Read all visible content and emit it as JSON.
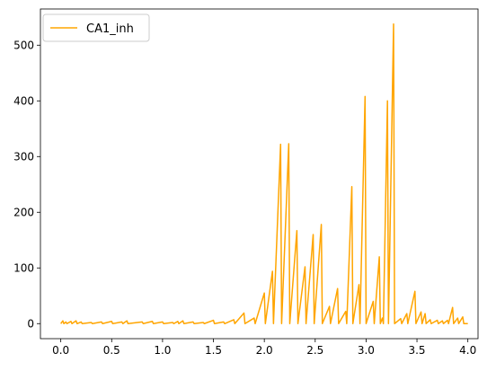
{
  "chart_data": {
    "type": "line",
    "title": "",
    "xlabel": "",
    "ylabel": "",
    "xlim": [
      -0.2,
      4.1
    ],
    "ylim": [
      -27,
      565
    ],
    "xticks": [
      0.0,
      0.5,
      1.0,
      1.5,
      2.0,
      2.5,
      3.0,
      3.5,
      4.0
    ],
    "xtick_labels": [
      "0.0",
      "0.5",
      "1.0",
      "1.5",
      "2.0",
      "2.5",
      "3.0",
      "3.5",
      "4.0"
    ],
    "yticks": [
      0,
      100,
      200,
      300,
      400,
      500
    ],
    "ytick_labels": [
      "0",
      "100",
      "200",
      "300",
      "400",
      "500"
    ],
    "grid": false,
    "legend_position": "top-left",
    "series": [
      {
        "name": "CA1_inh",
        "color": "#ffa500",
        "points": [
          [
            0.0,
            0
          ],
          [
            0.02,
            5
          ],
          [
            0.03,
            0
          ],
          [
            0.05,
            3
          ],
          [
            0.06,
            0
          ],
          [
            0.1,
            4
          ],
          [
            0.11,
            0
          ],
          [
            0.15,
            5
          ],
          [
            0.16,
            0
          ],
          [
            0.2,
            3
          ],
          [
            0.21,
            0
          ],
          [
            0.3,
            2
          ],
          [
            0.31,
            0
          ],
          [
            0.4,
            3
          ],
          [
            0.41,
            0
          ],
          [
            0.5,
            4
          ],
          [
            0.51,
            0
          ],
          [
            0.6,
            3
          ],
          [
            0.61,
            0
          ],
          [
            0.65,
            5
          ],
          [
            0.66,
            0
          ],
          [
            0.8,
            3
          ],
          [
            0.81,
            0
          ],
          [
            0.9,
            4
          ],
          [
            0.91,
            0
          ],
          [
            1.0,
            3
          ],
          [
            1.01,
            0
          ],
          [
            1.1,
            2
          ],
          [
            1.11,
            0
          ],
          [
            1.15,
            4
          ],
          [
            1.16,
            0
          ],
          [
            1.2,
            5
          ],
          [
            1.21,
            0
          ],
          [
            1.3,
            3
          ],
          [
            1.31,
            0
          ],
          [
            1.4,
            2
          ],
          [
            1.41,
            0
          ],
          [
            1.5,
            6
          ],
          [
            1.51,
            0
          ],
          [
            1.6,
            3
          ],
          [
            1.61,
            0
          ],
          [
            1.7,
            7
          ],
          [
            1.71,
            0
          ],
          [
            1.8,
            19
          ],
          [
            1.81,
            0
          ],
          [
            1.9,
            10
          ],
          [
            1.91,
            0
          ],
          [
            2.0,
            55
          ],
          [
            2.01,
            0
          ],
          [
            2.08,
            94
          ],
          [
            2.09,
            0
          ],
          [
            2.16,
            322
          ],
          [
            2.17,
            0
          ],
          [
            2.24,
            323
          ],
          [
            2.25,
            0
          ],
          [
            2.32,
            167
          ],
          [
            2.33,
            0
          ],
          [
            2.4,
            102
          ],
          [
            2.41,
            0
          ],
          [
            2.48,
            160
          ],
          [
            2.49,
            0
          ],
          [
            2.56,
            178
          ],
          [
            2.57,
            0
          ],
          [
            2.64,
            31
          ],
          [
            2.65,
            0
          ],
          [
            2.72,
            63
          ],
          [
            2.73,
            0
          ],
          [
            2.8,
            22
          ],
          [
            2.81,
            0
          ],
          [
            2.86,
            246
          ],
          [
            2.87,
            0
          ],
          [
            2.93,
            70
          ],
          [
            2.94,
            0
          ],
          [
            2.99,
            408
          ],
          [
            3.0,
            0
          ],
          [
            3.07,
            40
          ],
          [
            3.08,
            0
          ],
          [
            3.13,
            120
          ],
          [
            3.14,
            0
          ],
          [
            3.16,
            10
          ],
          [
            3.17,
            0
          ],
          [
            3.21,
            400
          ],
          [
            3.22,
            0
          ],
          [
            3.27,
            538
          ],
          [
            3.28,
            0
          ],
          [
            3.34,
            9
          ],
          [
            3.35,
            0
          ],
          [
            3.4,
            18
          ],
          [
            3.41,
            0
          ],
          [
            3.48,
            58
          ],
          [
            3.49,
            0
          ],
          [
            3.54,
            21
          ],
          [
            3.55,
            0
          ],
          [
            3.58,
            18
          ],
          [
            3.59,
            0
          ],
          [
            3.63,
            7
          ],
          [
            3.64,
            0
          ],
          [
            3.7,
            6
          ],
          [
            3.71,
            0
          ],
          [
            3.75,
            5
          ],
          [
            3.76,
            0
          ],
          [
            3.8,
            6
          ],
          [
            3.81,
            0
          ],
          [
            3.85,
            29
          ],
          [
            3.86,
            0
          ],
          [
            3.9,
            10
          ],
          [
            3.91,
            0
          ],
          [
            3.95,
            12
          ],
          [
            3.96,
            0
          ],
          [
            4.0,
            0
          ]
        ]
      }
    ]
  }
}
